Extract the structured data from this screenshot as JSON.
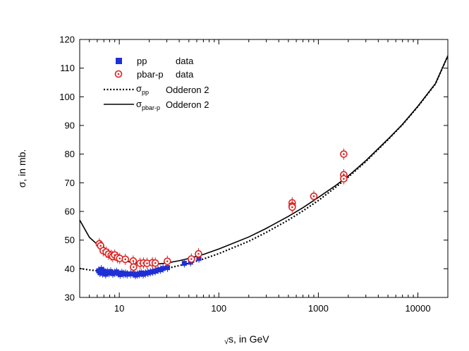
{
  "chart_data": {
    "type": "scatter",
    "xlabel_prefix": "√",
    "xlabel": "s, in GeV",
    "ylabel": "σ, in mb.",
    "x_scale": "log",
    "xlim": [
      4,
      20000
    ],
    "ylim": [
      30,
      120
    ],
    "x_ticks": [
      10,
      100,
      1000,
      10000
    ],
    "y_ticks": [
      30,
      40,
      50,
      60,
      70,
      80,
      90,
      100,
      110,
      120
    ],
    "grid": false,
    "legend_position": "top-left",
    "colors": {
      "pp": "#1f2fd6",
      "pbar": "#dd2222",
      "curve": "#000000"
    },
    "legend": [
      {
        "symbol": "square",
        "label": "pp",
        "label2": "data"
      },
      {
        "symbol": "open-circle",
        "label": "pbar-p",
        "label2": "data"
      },
      {
        "symbol": "dotted-line",
        "label": "σ",
        "sub": "pp",
        "label2": "Odderon 2"
      },
      {
        "symbol": "solid-line",
        "label": "σ",
        "sub": "pbar-p",
        "label2": "Odderon 2"
      }
    ],
    "series": [
      {
        "name": "pp",
        "marker": "square",
        "points": [
          [
            6.2,
            39.3
          ],
          [
            6.4,
            38.6
          ],
          [
            6.6,
            39.8
          ],
          [
            6.8,
            38.4
          ],
          [
            7.0,
            39.2
          ],
          [
            7.3,
            38.1
          ],
          [
            7.6,
            38.9
          ],
          [
            7.9,
            38.5
          ],
          [
            8.2,
            39.0
          ],
          [
            8.6,
            38.3
          ],
          [
            9.0,
            38.6
          ],
          [
            9.4,
            38.9
          ],
          [
            9.8,
            38.4
          ],
          [
            10.2,
            38.0
          ],
          [
            10.6,
            38.5
          ],
          [
            11.0,
            38.2
          ],
          [
            11.5,
            38.3
          ],
          [
            12.0,
            38.1
          ],
          [
            13.0,
            38.2
          ],
          [
            13.8,
            38.3
          ],
          [
            14.5,
            37.8
          ],
          [
            15.2,
            38.0
          ],
          [
            15.9,
            38.2
          ],
          [
            16.6,
            38.5
          ],
          [
            17.4,
            38.1
          ],
          [
            18.3,
            38.4
          ],
          [
            19.4,
            38.6
          ],
          [
            20.5,
            38.8
          ],
          [
            21.7,
            39.0
          ],
          [
            23.0,
            39.2
          ],
          [
            24.5,
            39.6
          ],
          [
            26.0,
            39.7
          ],
          [
            27.5,
            40.1
          ],
          [
            30.5,
            40.4
          ],
          [
            45.0,
            41.9
          ],
          [
            52.0,
            42.3
          ],
          [
            63.0,
            43.6
          ]
        ]
      },
      {
        "name": "pbar-p",
        "marker": "open-circle",
        "points": [
          [
            6.3,
            48.7
          ],
          [
            6.5,
            48.0
          ],
          [
            6.9,
            46.3
          ],
          [
            7.4,
            45.8
          ],
          [
            7.8,
            45.1
          ],
          [
            8.3,
            44.7
          ],
          [
            8.6,
            44.3
          ],
          [
            9.0,
            44.8
          ],
          [
            9.6,
            43.9
          ],
          [
            10.1,
            43.6
          ],
          [
            11.5,
            43.3
          ],
          [
            13.8,
            42.7
          ],
          [
            13.9,
            40.6
          ],
          [
            16.2,
            41.9
          ],
          [
            17.5,
            42.0
          ],
          [
            19.0,
            41.9
          ],
          [
            21.5,
            42.1
          ],
          [
            23.0,
            42.0
          ],
          [
            30.4,
            42.6
          ],
          [
            53.0,
            43.4
          ],
          [
            62.5,
            45.2
          ],
          [
            546,
            63.0
          ],
          [
            546,
            61.9
          ],
          [
            546,
            61.5
          ],
          [
            900,
            65.3
          ],
          [
            1800,
            80.0
          ],
          [
            1800,
            72.8
          ],
          [
            1800,
            71.4
          ]
        ]
      }
    ],
    "curves": [
      {
        "name": "σpp Odderon 2",
        "style": "dotted",
        "points": [
          [
            4,
            40.1
          ],
          [
            5,
            39.6
          ],
          [
            6,
            39.3
          ],
          [
            8,
            38.9
          ],
          [
            10,
            38.8
          ],
          [
            15,
            38.8
          ],
          [
            20,
            39.2
          ],
          [
            30,
            40.1
          ],
          [
            50,
            41.9
          ],
          [
            70,
            43.4
          ],
          [
            100,
            45.3
          ],
          [
            200,
            49.6
          ],
          [
            300,
            52.7
          ],
          [
            500,
            57.0
          ],
          [
            700,
            60.2
          ],
          [
            1000,
            63.8
          ],
          [
            1500,
            68.5
          ],
          [
            2000,
            72.0
          ],
          [
            3000,
            77.4
          ],
          [
            5000,
            85.0
          ],
          [
            7000,
            90.3
          ],
          [
            10000,
            96.6
          ],
          [
            15000,
            104.5
          ],
          [
            20000,
            114.3
          ]
        ]
      },
      {
        "name": "σpbar-p Odderon 2",
        "style": "solid",
        "points": [
          [
            4,
            57.0
          ],
          [
            5,
            51.0
          ],
          [
            6,
            48.5
          ],
          [
            7,
            46.5
          ],
          [
            8,
            45.1
          ],
          [
            10,
            43.5
          ],
          [
            12,
            42.6
          ],
          [
            15,
            41.8
          ],
          [
            20,
            41.6
          ],
          [
            25,
            41.7
          ],
          [
            30,
            42.0
          ],
          [
            40,
            42.8
          ],
          [
            50,
            43.6
          ],
          [
            70,
            45.0
          ],
          [
            100,
            46.9
          ],
          [
            200,
            51.1
          ],
          [
            300,
            54.1
          ],
          [
            500,
            58.3
          ],
          [
            700,
            61.3
          ],
          [
            1000,
            64.9
          ],
          [
            1500,
            69.1
          ],
          [
            2000,
            72.4
          ],
          [
            3000,
            77.7
          ],
          [
            5000,
            85.2
          ],
          [
            7000,
            90.4
          ],
          [
            10000,
            96.7
          ],
          [
            15000,
            104.6
          ],
          [
            20000,
            114.3
          ]
        ]
      }
    ]
  }
}
